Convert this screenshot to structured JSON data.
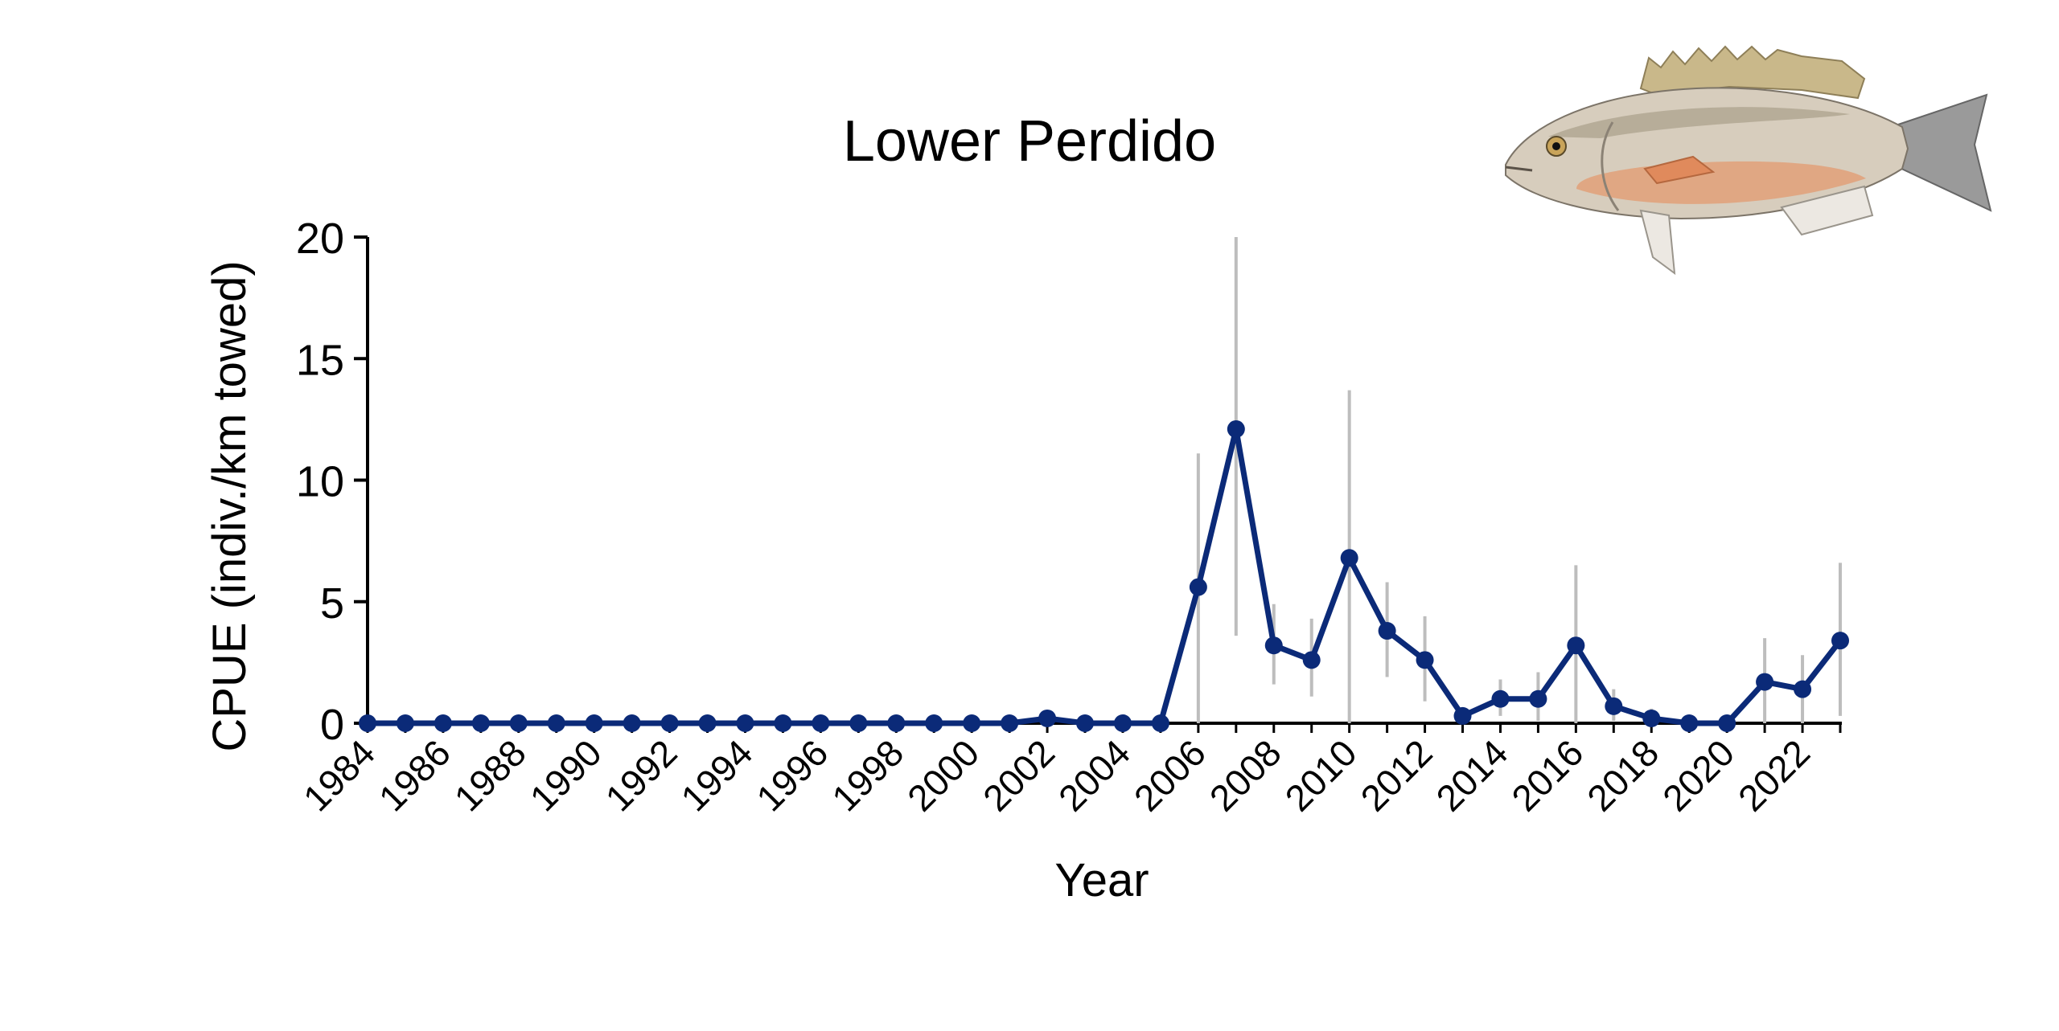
{
  "chart_data": {
    "type": "line",
    "title": "Lower Perdido",
    "xlabel": "Year",
    "ylabel": "CPUE (indiv./km towed)",
    "ylim": [
      0,
      20
    ],
    "yticks": [
      0,
      5,
      10,
      15,
      20
    ],
    "xlim": [
      1984,
      2023
    ],
    "xticks": [
      1984,
      1986,
      1988,
      1990,
      1992,
      1994,
      1996,
      1998,
      2000,
      2002,
      2004,
      2006,
      2008,
      2010,
      2012,
      2014,
      2016,
      2018,
      2020,
      2022
    ],
    "grid": false,
    "series": [
      {
        "name": "CPUE",
        "x": [
          1984,
          1985,
          1986,
          1987,
          1988,
          1989,
          1990,
          1991,
          1992,
          1993,
          1994,
          1995,
          1996,
          1997,
          1998,
          1999,
          2000,
          2001,
          2002,
          2003,
          2004,
          2005,
          2006,
          2007,
          2008,
          2009,
          2010,
          2011,
          2012,
          2013,
          2014,
          2015,
          2016,
          2017,
          2018,
          2019,
          2020,
          2021,
          2022,
          2023
        ],
        "values": [
          0,
          0,
          0,
          0,
          0,
          0,
          0,
          0,
          0,
          0,
          0,
          0,
          0,
          0,
          0,
          0,
          0,
          0,
          0.2,
          0,
          0,
          0,
          5.6,
          12.1,
          3.2,
          2.6,
          6.8,
          3.8,
          2.6,
          0.3,
          1.0,
          1.0,
          3.2,
          0.7,
          0.2,
          0,
          0,
          1.7,
          1.4,
          3.4
        ],
        "error_low": [
          0,
          0,
          0,
          0,
          0,
          0,
          0,
          0,
          0,
          0,
          0,
          0,
          0,
          0,
          0,
          0,
          0,
          0,
          0,
          0,
          0,
          0,
          0,
          3.6,
          1.6,
          1.1,
          0,
          1.9,
          0.9,
          0,
          0.3,
          0.1,
          0,
          0.1,
          0,
          0,
          0,
          0,
          0,
          0.3
        ],
        "error_high": [
          0,
          0,
          0,
          0,
          0,
          0,
          0,
          0,
          0,
          0,
          0,
          0,
          0,
          0,
          0,
          0,
          0,
          0,
          0.4,
          0,
          0,
          0,
          11.1,
          20,
          4.9,
          4.3,
          13.7,
          5.8,
          4.4,
          0.6,
          1.8,
          2.1,
          6.5,
          1.4,
          0.6,
          0,
          0,
          3.5,
          2.8,
          6.6
        ]
      }
    ],
    "colors": {
      "line": "#0b2a78",
      "marker": "#0b2a78",
      "error_bar": "#bdbdbd",
      "axis": "#000000"
    }
  },
  "illustration": {
    "name": "fish-illustration"
  }
}
